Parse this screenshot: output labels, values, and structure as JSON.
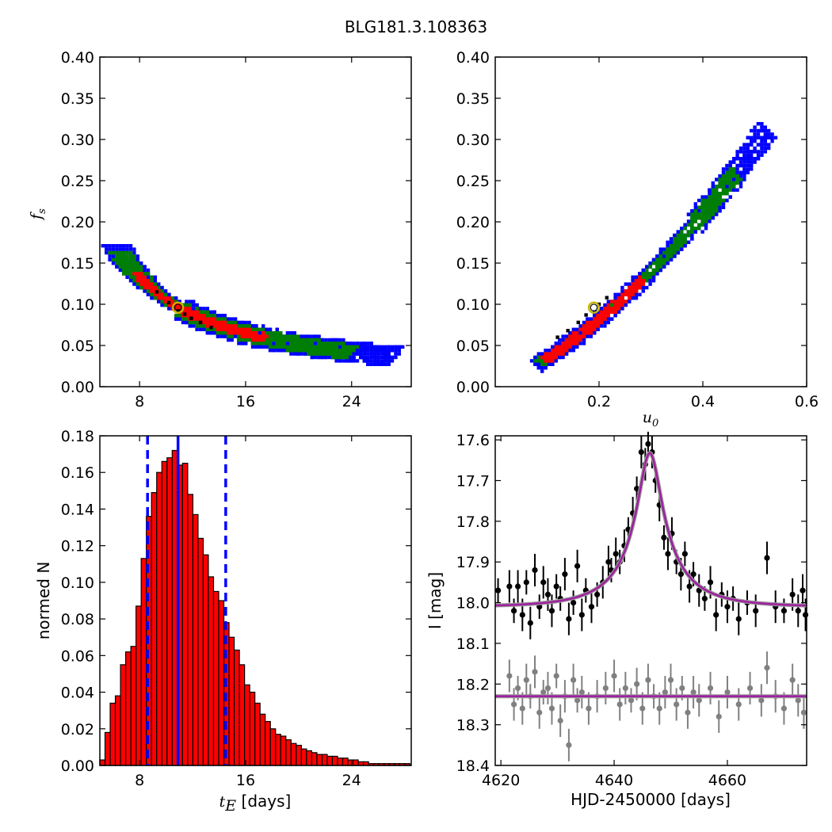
{
  "figure": {
    "title": "BLG181.3.108363"
  },
  "chart_data": [
    {
      "panel": "top-left",
      "type": "heatmap",
      "xlabel": "",
      "ylabel": "f",
      "ylabel_sub": "s",
      "xlim": [
        5,
        28.5
      ],
      "ylim": [
        0,
        0.4
      ],
      "xticks": [
        8,
        16,
        24
      ],
      "yticks": [
        "0.00",
        "0.05",
        "0.10",
        "0.15",
        "0.20",
        "0.25",
        "0.30",
        "0.35",
        "0.40"
      ],
      "colors": {
        "outer": "#0000ff",
        "middle": "#008000",
        "inner": "#ff0000",
        "core": "#000000",
        "best_fit": "#c8b400"
      },
      "curve": "fs = 1.06 / tE",
      "best_fit": {
        "x": 10.9,
        "y": 0.096
      }
    },
    {
      "panel": "top-right",
      "type": "heatmap",
      "xlabel": "u",
      "xlabel_sub": "0",
      "ylabel": "",
      "xlim": [
        0,
        0.6
      ],
      "ylim": [
        0,
        0.4
      ],
      "xticks": [
        "0.2",
        "0.4",
        "0.6"
      ],
      "yticks": [
        "0.00",
        "0.05",
        "0.10",
        "0.15",
        "0.20",
        "0.25",
        "0.30",
        "0.35",
        "0.40"
      ],
      "colors": {
        "outer": "#0000ff",
        "middle": "#008000",
        "inner": "#ff0000",
        "core": "#000000",
        "best_fit": "#c8b400"
      },
      "best_fit": {
        "x": 0.19,
        "y": 0.096
      }
    },
    {
      "panel": "bottom-left",
      "type": "bar",
      "xlabel": "t",
      "xlabel_sub": "E",
      "xlabel_unit": " [days]",
      "ylabel": "normed N",
      "xlim": [
        5,
        28.5
      ],
      "ylim": [
        0,
        0.18
      ],
      "xticks": [
        8,
        16,
        24
      ],
      "yticks": [
        "0.00",
        "0.02",
        "0.04",
        "0.06",
        "0.08",
        "0.10",
        "0.12",
        "0.14",
        "0.16",
        "0.18"
      ],
      "bin_start": 5.0,
      "bin_width": 0.39,
      "values": [
        0.003,
        0.018,
        0.034,
        0.038,
        0.055,
        0.062,
        0.065,
        0.087,
        0.113,
        0.136,
        0.149,
        0.16,
        0.166,
        0.168,
        0.172,
        0.164,
        0.165,
        0.148,
        0.137,
        0.124,
        0.115,
        0.103,
        0.095,
        0.09,
        0.078,
        0.07,
        0.063,
        0.055,
        0.044,
        0.04,
        0.034,
        0.028,
        0.024,
        0.02,
        0.017,
        0.016,
        0.014,
        0.012,
        0.011,
        0.009,
        0.008,
        0.007,
        0.006,
        0.006,
        0.005,
        0.005,
        0.004,
        0.004,
        0.003,
        0.003,
        0.002,
        0.002,
        0.001,
        0.001,
        0.001,
        0.001,
        0.001,
        0.001,
        0.001,
        0.001
      ],
      "bar_color": "#ff0000",
      "median": 10.9,
      "lower": 8.6,
      "upper": 14.5,
      "line_color": "#0000ff"
    },
    {
      "panel": "bottom-right",
      "type": "scatter",
      "xlabel": "HJD-2450000 [days]",
      "ylabel": "I [mag]",
      "xlim": [
        4619,
        4674
      ],
      "ylim": [
        17.59,
        18.4
      ],
      "y_inverted": true,
      "xticks": [
        4620,
        4640,
        4660
      ],
      "yticks": [
        "17.6",
        "17.7",
        "17.8",
        "17.9",
        "18.0",
        "18.1",
        "18.2",
        "18.3",
        "18.4"
      ],
      "model": {
        "t0": 4646.3,
        "tE": 10.9,
        "u0": 0.19,
        "fs": 0.096,
        "baseline": 18.01,
        "baseline_offset": 18.23,
        "color": "#a020a0"
      },
      "series": [
        {
          "color": "#000000",
          "points": [
            [
              4619.5,
              17.97,
              0.03
            ],
            [
              4621.5,
              17.96,
              0.04
            ],
            [
              4622.3,
              18.02,
              0.03
            ],
            [
              4623.0,
              17.96,
              0.04
            ],
            [
              4623.8,
              18.03,
              0.04
            ],
            [
              4624.5,
              17.95,
              0.03
            ],
            [
              4625.2,
              18.05,
              0.04
            ],
            [
              4626.0,
              17.92,
              0.04
            ],
            [
              4626.8,
              18.01,
              0.03
            ],
            [
              4627.5,
              17.95,
              0.04
            ],
            [
              4628.3,
              17.98,
              0.04
            ],
            [
              4629.0,
              18.02,
              0.04
            ],
            [
              4629.8,
              17.96,
              0.03
            ],
            [
              4630.5,
              17.99,
              0.03
            ],
            [
              4631.3,
              17.93,
              0.04
            ],
            [
              4632.0,
              18.04,
              0.04
            ],
            [
              4632.8,
              18.0,
              0.03
            ],
            [
              4633.5,
              17.91,
              0.04
            ],
            [
              4634.3,
              18.03,
              0.04
            ],
            [
              4635.0,
              17.97,
              0.03
            ],
            [
              4636.0,
              18.01,
              0.04
            ],
            [
              4637.0,
              17.98,
              0.03
            ],
            [
              4638.0,
              17.95,
              0.04
            ],
            [
              4639.0,
              17.9,
              0.04
            ],
            [
              4639.5,
              17.92,
              0.03
            ],
            [
              4640.3,
              17.88,
              0.04
            ],
            [
              4641.0,
              17.9,
              0.03
            ],
            [
              4641.8,
              17.86,
              0.04
            ],
            [
              4642.5,
              17.82,
              0.03
            ],
            [
              4643.3,
              17.78,
              0.04
            ],
            [
              4644.0,
              17.72,
              0.03
            ],
            [
              4644.8,
              17.63,
              0.04
            ],
            [
              4645.5,
              17.66,
              0.04
            ],
            [
              4646.0,
              17.61,
              0.03
            ],
            [
              4646.7,
              17.63,
              0.04
            ],
            [
              4647.3,
              17.7,
              0.03
            ],
            [
              4648.0,
              17.76,
              0.04
            ],
            [
              4648.8,
              17.84,
              0.03
            ],
            [
              4649.5,
              17.88,
              0.04
            ],
            [
              4650.2,
              17.83,
              0.04
            ],
            [
              4651.0,
              17.9,
              0.03
            ],
            [
              4651.8,
              17.93,
              0.04
            ],
            [
              4652.5,
              17.88,
              0.03
            ],
            [
              4653.3,
              17.96,
              0.04
            ],
            [
              4654.0,
              17.93,
              0.03
            ],
            [
              4655.0,
              17.97,
              0.04
            ],
            [
              4656.0,
              17.99,
              0.03
            ],
            [
              4657.0,
              17.95,
              0.04
            ],
            [
              4658.0,
              18.03,
              0.04
            ],
            [
              4659.0,
              17.98,
              0.03
            ],
            [
              4660.0,
              18.01,
              0.04
            ],
            [
              4661.0,
              17.99,
              0.03
            ],
            [
              4662.0,
              18.04,
              0.04
            ],
            [
              4663.5,
              18.0,
              0.03
            ],
            [
              4665.0,
              18.02,
              0.04
            ],
            [
              4667.0,
              17.89,
              0.04
            ],
            [
              4668.5,
              18.01,
              0.04
            ],
            [
              4670.0,
              18.02,
              0.03
            ],
            [
              4671.5,
              17.98,
              0.04
            ],
            [
              4672.5,
              18.02,
              0.04
            ],
            [
              4673.3,
              17.97,
              0.04
            ],
            [
              4673.8,
              18.03,
              0.04
            ]
          ]
        },
        {
          "color": "#808080",
          "points": [
            [
              4621.5,
              18.18,
              0.04
            ],
            [
              4622.3,
              18.25,
              0.04
            ],
            [
              4623.0,
              18.21,
              0.03
            ],
            [
              4623.8,
              18.26,
              0.04
            ],
            [
              4624.5,
              18.19,
              0.04
            ],
            [
              4625.2,
              18.23,
              0.03
            ],
            [
              4626.0,
              18.17,
              0.04
            ],
            [
              4626.8,
              18.27,
              0.04
            ],
            [
              4627.5,
              18.22,
              0.03
            ],
            [
              4628.3,
              18.21,
              0.04
            ],
            [
              4629.0,
              18.26,
              0.04
            ],
            [
              4629.8,
              18.18,
              0.03
            ],
            [
              4630.5,
              18.29,
              0.04
            ],
            [
              4631.3,
              18.23,
              0.04
            ],
            [
              4632.0,
              18.35,
              0.04
            ],
            [
              4632.8,
              18.19,
              0.04
            ],
            [
              4633.5,
              18.24,
              0.03
            ],
            [
              4634.3,
              18.22,
              0.04
            ],
            [
              4635.5,
              18.26,
              0.04
            ],
            [
              4637.0,
              18.23,
              0.04
            ],
            [
              4638.5,
              18.21,
              0.04
            ],
            [
              4640.0,
              18.18,
              0.04
            ],
            [
              4641.0,
              18.25,
              0.04
            ],
            [
              4642.0,
              18.21,
              0.04
            ],
            [
              4643.0,
              18.24,
              0.03
            ],
            [
              4644.0,
              18.2,
              0.04
            ],
            [
              4645.0,
              18.26,
              0.04
            ],
            [
              4646.0,
              18.19,
              0.04
            ],
            [
              4647.0,
              18.23,
              0.03
            ],
            [
              4648.0,
              18.26,
              0.04
            ],
            [
              4649.0,
              18.22,
              0.04
            ],
            [
              4650.0,
              18.19,
              0.04
            ],
            [
              4651.0,
              18.25,
              0.04
            ],
            [
              4652.0,
              18.21,
              0.03
            ],
            [
              4653.0,
              18.27,
              0.04
            ],
            [
              4654.0,
              18.22,
              0.04
            ],
            [
              4655.0,
              18.24,
              0.04
            ],
            [
              4657.0,
              18.21,
              0.04
            ],
            [
              4658.5,
              18.28,
              0.04
            ],
            [
              4660.0,
              18.22,
              0.04
            ],
            [
              4662.0,
              18.25,
              0.04
            ],
            [
              4664.0,
              18.21,
              0.04
            ],
            [
              4666.0,
              18.24,
              0.04
            ],
            [
              4667.0,
              18.16,
              0.04
            ],
            [
              4668.5,
              18.23,
              0.04
            ],
            [
              4670.0,
              18.26,
              0.04
            ],
            [
              4671.5,
              18.19,
              0.04
            ],
            [
              4672.5,
              18.24,
              0.04
            ],
            [
              4673.5,
              18.27,
              0.04
            ]
          ]
        }
      ]
    }
  ]
}
